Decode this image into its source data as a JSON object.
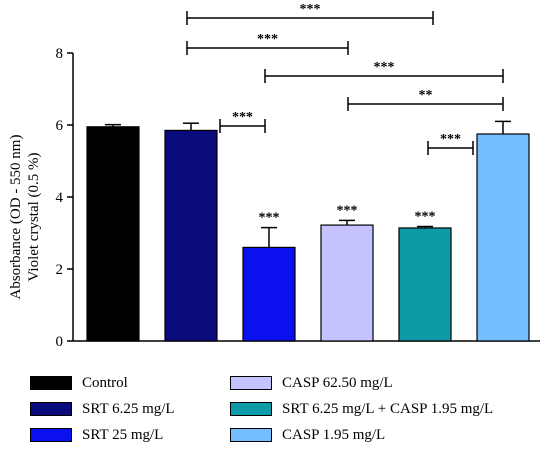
{
  "chart_data": {
    "type": "bar",
    "categories": [
      "Control",
      "SRT 6.25 mg/L",
      "SRT 25 mg/L",
      "CASP 62.50 mg/L",
      "SRT 6.25 mg/L + CASP 1.95 mg/L",
      "CASP 1.95 mg/L"
    ],
    "values": [
      5.95,
      5.85,
      2.6,
      3.22,
      3.14,
      5.75
    ],
    "errors": [
      0.06,
      0.2,
      0.55,
      0.13,
      0.04,
      0.35
    ],
    "colors": [
      "#000000",
      "#0a0a7a",
      "#0a10ee",
      "#c4c2ff",
      "#0e9aa6",
      "#74beff"
    ],
    "bar_labels": [
      "",
      "",
      "***",
      "***",
      "***",
      ""
    ],
    "ylabel_line1": "Absorbance (OD - 550 nm)",
    "ylabel_line2": "Violet crystal (0.5 %)",
    "ylim": [
      0,
      8
    ],
    "yticks": [
      0,
      2,
      4,
      6,
      8
    ],
    "comparisons": [
      {
        "from": 1,
        "to": 4,
        "label": "***"
      },
      {
        "from": 1,
        "to": 3,
        "label": "***"
      },
      {
        "from": 2,
        "to": 5,
        "label": "***"
      },
      {
        "from": 3,
        "to": 5,
        "label": "**"
      },
      {
        "from": 1,
        "to": 2,
        "label": "***"
      },
      {
        "from": 4,
        "to": 5,
        "label": "***"
      }
    ],
    "legend": [
      {
        "label": "Control",
        "color": "#000000"
      },
      {
        "label": "CASP 62.50 mg/L",
        "color": "#c4c2ff"
      },
      {
        "label": "SRT 6.25 mg/L",
        "color": "#0a0a7a"
      },
      {
        "label": "SRT 6.25 mg/L + CASP 1.95 mg/L",
        "color": "#0e9aa6"
      },
      {
        "label": "SRT 25 mg/L",
        "color": "#0a10ee"
      },
      {
        "label": "CASP 1.95 mg/L",
        "color": "#74beff"
      }
    ],
    "grid": false,
    "legend_position": "bottom"
  }
}
